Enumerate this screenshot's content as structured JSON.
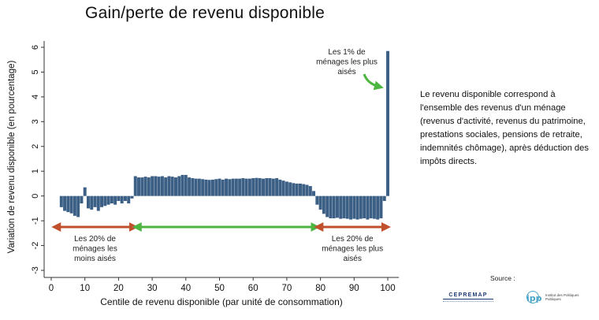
{
  "title": "Gain/perte de revenu disponible",
  "description": "Le revenu disponible correspond à l'ensemble des revenus d'un ménage (revenus d'activité, revenus du patrimoine, prestations sociales, pensions de retraite, indemnités chômage), après déduction des impôts directs.",
  "source": {
    "label": "Source :",
    "logos": [
      {
        "name": "CEPREMAP",
        "icon": "cepremap-logo"
      },
      {
        "name": "ipp",
        "subtitle": "Institut des Politiques Publiques",
        "icon": "ipp-logo"
      }
    ]
  },
  "colors": {
    "bar": "#3c5f85",
    "arrow_low": "#c0502b",
    "arrow_middle": "#4cb640",
    "arrow_high": "#c0502b",
    "pointer": "#4cb640"
  },
  "chart_data": {
    "type": "bar",
    "xlabel": "Centile de revenu disponible (par unité de consommation)",
    "ylabel": "Variation de revenu disponible (en pourcentage)",
    "xlim": [
      1,
      100
    ],
    "ylim": [
      -3,
      6
    ],
    "xticks": [
      0,
      10,
      20,
      30,
      40,
      50,
      60,
      70,
      80,
      90,
      100
    ],
    "yticks": [
      -3,
      -2,
      -1,
      0,
      1,
      2,
      3,
      4,
      5,
      6
    ],
    "grid": false,
    "x": [
      1,
      2,
      3,
      4,
      5,
      6,
      7,
      8,
      9,
      10,
      11,
      12,
      13,
      14,
      15,
      16,
      17,
      18,
      19,
      20,
      21,
      22,
      23,
      24,
      25,
      26,
      27,
      28,
      29,
      30,
      31,
      32,
      33,
      34,
      35,
      36,
      37,
      38,
      39,
      40,
      41,
      42,
      43,
      44,
      45,
      46,
      47,
      48,
      49,
      50,
      51,
      52,
      53,
      54,
      55,
      56,
      57,
      58,
      59,
      60,
      61,
      62,
      63,
      64,
      65,
      66,
      67,
      68,
      69,
      70,
      71,
      72,
      73,
      74,
      75,
      76,
      77,
      78,
      79,
      80,
      81,
      82,
      83,
      84,
      85,
      86,
      87,
      88,
      89,
      90,
      91,
      92,
      93,
      94,
      95,
      96,
      97,
      98,
      99,
      100
    ],
    "values": [
      0,
      0,
      -0.45,
      -0.6,
      -0.65,
      -0.7,
      -0.8,
      -0.85,
      -0.3,
      0.35,
      -0.5,
      -0.55,
      -0.45,
      -0.6,
      -0.45,
      -0.4,
      -0.35,
      -0.3,
      -0.35,
      -0.2,
      -0.3,
      -0.2,
      -0.3,
      -0.1,
      0.8,
      0.75,
      0.75,
      0.78,
      0.75,
      0.8,
      0.8,
      0.78,
      0.8,
      0.75,
      0.8,
      0.78,
      0.75,
      0.8,
      0.85,
      0.85,
      0.75,
      0.72,
      0.7,
      0.7,
      0.68,
      0.66,
      0.65,
      0.66,
      0.68,
      0.7,
      0.66,
      0.7,
      0.68,
      0.7,
      0.7,
      0.7,
      0.72,
      0.7,
      0.7,
      0.72,
      0.73,
      0.72,
      0.7,
      0.72,
      0.72,
      0.7,
      0.72,
      0.66,
      0.62,
      0.58,
      0.55,
      0.52,
      0.5,
      0.5,
      0.48,
      0.45,
      0.4,
      0.2,
      -0.35,
      -0.55,
      -0.72,
      -0.85,
      -0.9,
      -0.9,
      -0.88,
      -0.92,
      -0.9,
      -0.92,
      -0.95,
      -0.92,
      -0.95,
      -0.92,
      -0.9,
      -0.95,
      -0.9,
      -0.92,
      -0.95,
      -0.9,
      -0.2,
      5.85
    ],
    "annotations": [
      {
        "text": "Les 20% de\nménages les\nmoins aisés",
        "range": [
          1,
          25
        ],
        "color": "#c0502b"
      },
      {
        "text": "",
        "range": [
          25,
          79
        ],
        "color": "#4cb640"
      },
      {
        "text": "Les 20% de\nménages les plus\naisés",
        "range": [
          79,
          100
        ],
        "color": "#c0502b"
      },
      {
        "text": "Les 1% de\nménages les plus\naisés",
        "points_to": 100,
        "color": "#4cb640"
      }
    ]
  }
}
